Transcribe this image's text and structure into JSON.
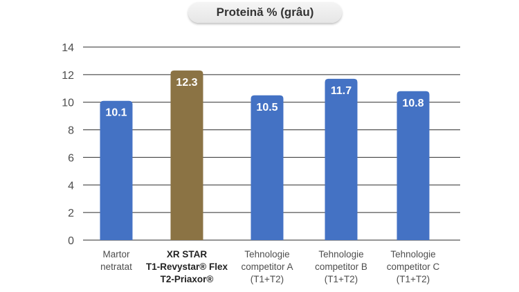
{
  "chart_data": {
    "type": "bar",
    "title": "Proteină % (grâu)",
    "ylim": [
      0,
      14
    ],
    "yticks": [
      0,
      2,
      4,
      6,
      8,
      10,
      12,
      14
    ],
    "grid": true,
    "categories": [
      {
        "lines": [
          "Martor",
          "netratat"
        ],
        "bold": false
      },
      {
        "lines": [
          "XR STAR",
          "T1-Revystar® Flex",
          "T2-Priaxor®"
        ],
        "bold": true
      },
      {
        "lines": [
          "Tehnologie",
          "competitor A",
          "(T1+T2)"
        ],
        "bold": false
      },
      {
        "lines": [
          "Tehnologie",
          "competitor B",
          "(T1+T2)"
        ],
        "bold": false
      },
      {
        "lines": [
          "Tehnologie",
          "competitor C",
          "(T1+T2)"
        ],
        "bold": false
      }
    ],
    "values": [
      10.1,
      12.3,
      10.5,
      11.7,
      10.8
    ],
    "value_labels": [
      "10.1",
      "12.3",
      "10.5",
      "11.7",
      "10.8"
    ],
    "colors": [
      "#4472c4",
      "#8b7344",
      "#4472c4",
      "#4472c4",
      "#4472c4"
    ]
  },
  "colors": {
    "axis_text": "#4d4d4d",
    "grid": "#2b2b2b",
    "bar_label": "#ffffff"
  }
}
